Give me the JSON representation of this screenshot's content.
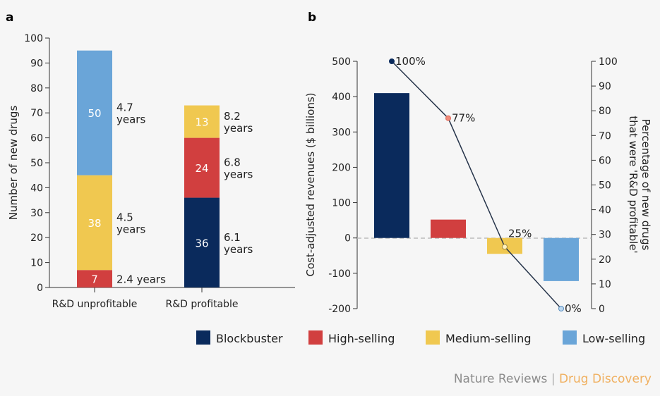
{
  "colors": {
    "blockbuster": "#0a2a5c",
    "high": "#d13f3f",
    "medium": "#f0c850",
    "low": "#6aa5d8"
  },
  "legend": [
    {
      "label": "Blockbuster",
      "color": "#0a2a5c"
    },
    {
      "label": "High-selling",
      "color": "#d13f3f"
    },
    {
      "label": "Medium-selling",
      "color": "#f0c850"
    },
    {
      "label": "Low-selling",
      "color": "#6aa5d8"
    }
  ],
  "credit": {
    "journal": "Nature Reviews",
    "separator": "|",
    "section": "Drug Discovery"
  },
  "chart_data": [
    {
      "panel": "a",
      "type": "bar",
      "stacked": true,
      "ylabel": "Number of new drugs",
      "ylim": [
        0,
        100
      ],
      "yticks": [
        0,
        10,
        20,
        30,
        40,
        50,
        60,
        70,
        80,
        90,
        100
      ],
      "categories": [
        "R&D unprofitable",
        "R&D profitable"
      ],
      "stacks": [
        [
          {
            "segment": "high",
            "value": 7,
            "label": "7",
            "note": [
              "2.4 years"
            ]
          },
          {
            "segment": "medium",
            "value": 38,
            "label": "38",
            "note": [
              "4.5",
              "years"
            ]
          },
          {
            "segment": "low",
            "value": 50,
            "label": "50",
            "note": [
              "4.7",
              "years"
            ]
          }
        ],
        [
          {
            "segment": "blockbuster",
            "value": 36,
            "label": "36",
            "note": [
              "6.1",
              "years"
            ]
          },
          {
            "segment": "high",
            "value": 24,
            "label": "24",
            "note": [
              "6.8",
              "years"
            ]
          },
          {
            "segment": "medium",
            "value": 13,
            "label": "13",
            "note": [
              "8.2",
              "years"
            ]
          }
        ]
      ]
    },
    {
      "panel": "b",
      "type": "bar",
      "ylabel": "Cost-adjusted revenues ($ billions)",
      "ylim": [
        -200,
        500
      ],
      "yticks": [
        -200,
        -100,
        0,
        100,
        200,
        300,
        400,
        500
      ],
      "y2label": [
        "Percentage of new drugs",
        "that were 'R&D profitable'"
      ],
      "y2lim": [
        0,
        100
      ],
      "y2ticks": [
        0,
        10,
        20,
        30,
        40,
        50,
        60,
        70,
        80,
        90,
        100
      ],
      "categories": [
        "Blockbuster",
        "High-selling",
        "Medium-selling",
        "Low-selling"
      ],
      "values": [
        410,
        52,
        -45,
        -122
      ],
      "line": {
        "values": [
          100,
          77,
          25,
          0
        ],
        "labels": [
          "100%",
          "77%",
          "25%",
          "0%"
        ]
      },
      "reference_line_y2": 28.5
    }
  ]
}
